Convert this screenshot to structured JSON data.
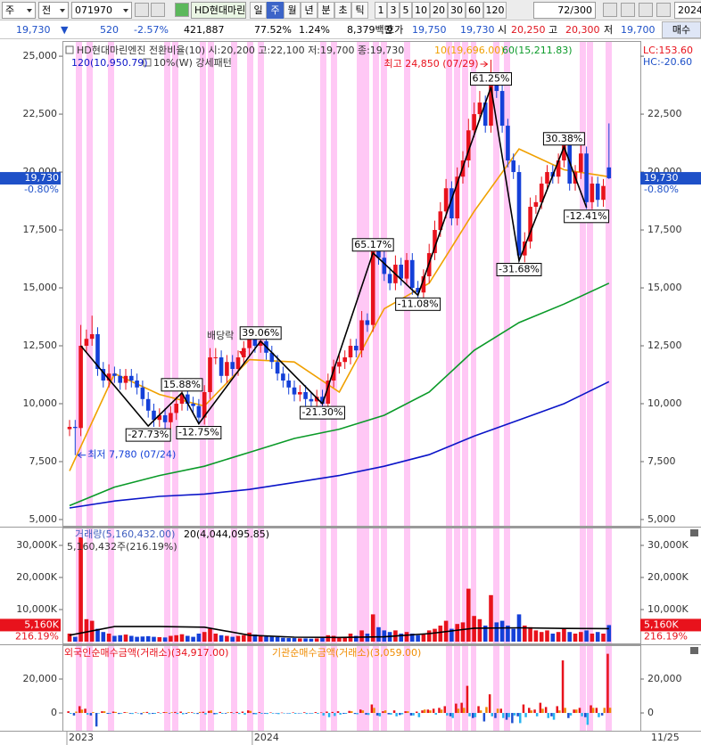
{
  "toolbar": {
    "period": "주",
    "scope": "전",
    "code": "071970",
    "name": "HD현대마린",
    "timeframes": [
      "일",
      "주",
      "월",
      "년",
      "분",
      "초",
      "틱"
    ],
    "selected": "주",
    "intervals": [
      "1",
      "3",
      "5",
      "10",
      "20",
      "30",
      "60",
      "120"
    ],
    "count": "72",
    "count_max": "/300",
    "date": "2024/",
    "buy": "매수"
  },
  "info_bar": {
    "price": "19,730",
    "arrow": "▼",
    "change": "520",
    "change_pct": "-2.57%",
    "volume": "421,887",
    "vol_ratio": "77.52%",
    "turnover": "1.24%",
    "amount": "8,379백만",
    "quote_label": "호가",
    "ask": "19,750",
    "bid": "19,730",
    "open_label": "시",
    "open": "20,250",
    "high_label": "고",
    "high": "20,300",
    "low_label": "저",
    "low": "19,700"
  },
  "chart_data": [
    {
      "type": "candlestick",
      "title": "HD현대마린엔진 전환비율(10) 시:20,200 고:22,100 저:19,700 종:19,730",
      "categories": [
        "2023",
        null,
        null,
        null,
        null,
        null,
        null,
        null,
        null,
        null,
        null,
        null,
        null,
        null,
        null,
        null,
        null,
        null,
        null,
        null,
        null,
        null,
        null,
        null,
        null,
        null,
        null,
        null,
        null,
        null,
        null,
        null,
        null,
        "2024",
        null,
        null,
        null,
        null,
        null,
        null,
        null,
        null,
        null,
        null,
        null,
        null,
        null,
        null,
        null,
        null,
        null,
        null,
        null,
        null,
        null,
        null,
        null,
        null,
        null,
        null,
        null,
        null,
        null,
        null,
        null,
        null,
        null,
        null,
        null,
        null,
        null,
        null,
        null,
        null,
        null,
        null,
        null,
        null,
        null,
        null,
        null,
        null,
        null,
        null,
        null,
        null,
        null,
        null,
        null,
        null,
        null,
        null,
        null,
        null,
        null,
        null,
        null
      ],
      "last_date": "11/25",
      "open": [
        8900,
        9000,
        8950,
        12500,
        12800,
        13000,
        11500,
        11000,
        11300,
        11200,
        10900,
        11200,
        11000,
        10700,
        10200,
        9700,
        9300,
        9500,
        9200,
        9600,
        10000,
        10400,
        10000,
        9900,
        9400,
        10500,
        12000,
        12000,
        11200,
        11800,
        11500,
        12000,
        12400,
        12800,
        12500,
        12700,
        12200,
        11800,
        11300,
        11000,
        10700,
        10400,
        10500,
        10200,
        10100,
        10300,
        10000,
        11000,
        11600,
        11800,
        12000,
        12500,
        12300,
        13600,
        13400,
        16600,
        16300,
        15600,
        15200,
        16000,
        15400,
        16200,
        15000,
        14800,
        15500,
        16500,
        17500,
        18300,
        19300,
        18000,
        19800,
        20500,
        21800,
        22500,
        23000,
        22000,
        23900,
        23500,
        22000,
        20500,
        20000,
        16400,
        17000,
        18500,
        18700,
        19500,
        20000,
        19800,
        20500,
        21200,
        19500,
        20000,
        20800,
        18700,
        19500,
        18800,
        20200
      ],
      "high": [
        9300,
        9300,
        13400,
        13200,
        13800,
        13300,
        11800,
        11700,
        11600,
        11500,
        11500,
        11500,
        11300,
        11000,
        10500,
        10000,
        9800,
        9800,
        9900,
        10300,
        10700,
        10700,
        10300,
        10200,
        10800,
        12400,
        12400,
        12300,
        12100,
        12100,
        12300,
        12700,
        13200,
        13100,
        13000,
        13000,
        12500,
        12100,
        11600,
        11300,
        11000,
        10800,
        10800,
        10500,
        10600,
        10600,
        11300,
        11900,
        12100,
        12300,
        12800,
        12800,
        14000,
        13900,
        17000,
        16900,
        16600,
        15900,
        16400,
        16300,
        16500,
        16500,
        15300,
        15800,
        16900,
        17900,
        18700,
        19700,
        19600,
        20200,
        20900,
        22300,
        23000,
        23500,
        23300,
        24850,
        24200,
        23800,
        22300,
        20800,
        20300,
        17400,
        18900,
        19000,
        19800,
        20300,
        20300,
        20800,
        21600,
        21500,
        20300,
        21200,
        21100,
        19800,
        19800,
        19700,
        22100
      ],
      "low": [
        8600,
        7780,
        8600,
        12200,
        12500,
        11200,
        10700,
        10700,
        10900,
        10600,
        10600,
        10700,
        10400,
        9900,
        9400,
        9000,
        9000,
        8900,
        8900,
        9300,
        9700,
        9700,
        9600,
        9100,
        9100,
        10200,
        11700,
        10900,
        10900,
        11200,
        11200,
        11700,
        12100,
        12200,
        12200,
        11900,
        11500,
        11000,
        10700,
        10400,
        10100,
        10100,
        9900,
        9800,
        9800,
        9700,
        9700,
        10700,
        11300,
        11500,
        11700,
        12000,
        12000,
        13100,
        13100,
        16000,
        15300,
        14900,
        14900,
        15100,
        15100,
        14700,
        14500,
        14500,
        15200,
        16200,
        17200,
        18000,
        17700,
        17700,
        19500,
        20200,
        21500,
        22200,
        21700,
        21700,
        23200,
        21700,
        20200,
        19700,
        16100,
        16100,
        16700,
        18200,
        18400,
        19200,
        19500,
        19500,
        20200,
        19200,
        19200,
        19700,
        18400,
        18400,
        18500,
        18500,
        19700
      ],
      "close": [
        9000,
        8950,
        12500,
        12800,
        13000,
        11500,
        11000,
        11300,
        11200,
        10900,
        11200,
        11000,
        10700,
        10200,
        9700,
        9300,
        9500,
        9200,
        9600,
        10000,
        10400,
        10000,
        9900,
        9400,
        10500,
        12000,
        12000,
        11200,
        11800,
        11500,
        12000,
        12400,
        12800,
        12500,
        12700,
        12200,
        11800,
        11300,
        11000,
        10700,
        10400,
        10500,
        10200,
        10100,
        10300,
        10000,
        11000,
        11600,
        11800,
        12000,
        12500,
        12300,
        13600,
        13400,
        16600,
        16300,
        15600,
        15200,
        16000,
        15400,
        16200,
        15000,
        14800,
        15500,
        16500,
        17500,
        18300,
        19300,
        18000,
        19800,
        20500,
        21800,
        22500,
        23000,
        22000,
        23900,
        23500,
        22000,
        20500,
        20000,
        16400,
        17000,
        18500,
        18700,
        19500,
        20000,
        19800,
        20500,
        21200,
        19500,
        20000,
        20800,
        18700,
        19500,
        18800,
        19400,
        19730
      ],
      "up_color": "#e8121c",
      "down_color": "#1440d8",
      "series": [
        {
          "name": "10(19,696.00)",
          "color": "#f0a000",
          "x": [
            0,
            8,
            16,
            24,
            32,
            40,
            48,
            56,
            64,
            72,
            80,
            88,
            96
          ],
          "values": [
            7100,
            11300,
            10400,
            9900,
            11900,
            11800,
            10500,
            14100,
            15200,
            18300,
            21000,
            20100,
            19800
          ]
        },
        {
          "name": "60(15,211.83)",
          "color": "#0a9a28",
          "x": [
            0,
            8,
            16,
            24,
            32,
            40,
            48,
            56,
            64,
            72,
            80,
            88,
            96
          ],
          "values": [
            5600,
            6400,
            6900,
            7300,
            7900,
            8500,
            8900,
            9500,
            10500,
            12300,
            13500,
            14300,
            15200
          ]
        },
        {
          "name": "120(10,950.79)",
          "color": "#0a14c8",
          "x": [
            0,
            8,
            16,
            24,
            32,
            40,
            48,
            56,
            64,
            72,
            80,
            88,
            96
          ],
          "values": [
            5500,
            5800,
            6000,
            6100,
            6300,
            6600,
            6900,
            7300,
            7800,
            8600,
            9300,
            10000,
            10950
          ]
        }
      ],
      "pattern_label": "10%(W) 강세패턴",
      "zigzag": {
        "x": [
          2,
          14,
          20,
          23,
          34,
          45,
          54,
          62,
          75,
          80,
          88,
          92
        ],
        "values": [
          12500,
          9034,
          10469,
          9134,
          12702,
          9996,
          16510,
          14681,
          23673,
          16174,
          21088,
          18471
        ],
        "labels": [
          null,
          "-27.73%",
          "15.88%",
          "-12.75%",
          "39.06%",
          "-21.30%",
          "65.17%",
          "-11.08%",
          "61.25%",
          "-31.68%",
          "30.38%",
          "-12.41%"
        ]
      },
      "annotations": {
        "high": "최고 24,850 (07/29)",
        "low": "최저 7,780 (07/24)",
        "event": "배당락"
      },
      "lc": "LC:153.60",
      "hc": "HC:-20.60",
      "last_label": "19,730",
      "last_change": "-0.80%",
      "ylim": [
        4730,
        25580
      ],
      "yticks": [
        {
          "value": 5000,
          "label": "5,000"
        },
        {
          "value": 7500,
          "label": "7,500"
        },
        {
          "value": 10000,
          "label": "10,000"
        },
        {
          "value": 12500,
          "label": "12,500"
        },
        {
          "value": 15000,
          "label": "15,000"
        },
        {
          "value": 17500,
          "label": "17,500"
        },
        {
          "value": 20000,
          "label": "20,000"
        },
        {
          "value": 22500,
          "label": "22,500"
        },
        {
          "value": 25000,
          "label": "25,000"
        }
      ],
      "grid": false
    },
    {
      "type": "bar",
      "title": "거래량(5,160,432.00)",
      "summary": "5,160,432주(216.19%)",
      "values": [
        2500,
        1500,
        32500,
        7000,
        6500,
        4000,
        3000,
        2500,
        1800,
        2000,
        2200,
        1800,
        1500,
        1600,
        1700,
        1500,
        1400,
        1300,
        1800,
        2000,
        2300,
        1800,
        1500,
        2500,
        3000,
        4000,
        2500,
        2000,
        1800,
        1500,
        1800,
        2000,
        2800,
        2200,
        2000,
        1600,
        1500,
        1400,
        1200,
        1100,
        1100,
        1000,
        1000,
        900,
        1000,
        1100,
        2000,
        1800,
        1500,
        1500,
        2500,
        1800,
        3500,
        2500,
        8500,
        4500,
        3500,
        3000,
        3500,
        2500,
        3000,
        2500,
        2000,
        2500,
        3500,
        4000,
        5000,
        6500,
        4000,
        5500,
        6000,
        16500,
        8000,
        7000,
        5000,
        14500,
        6000,
        6500,
        5000,
        4000,
        8500,
        5000,
        4500,
        3500,
        3000,
        3500,
        2500,
        3000,
        4000,
        3000,
        2500,
        3000,
        3500,
        2500,
        3000,
        2500,
        5160
      ],
      "up_color": "#e8121c",
      "down_color": "#1440d8",
      "series": [
        {
          "name": "20(4,044,095.85)",
          "color": "#000000",
          "x": [
            0,
            8,
            16,
            24,
            32,
            40,
            48,
            56,
            64,
            72,
            80,
            88,
            96
          ],
          "values": [
            2000,
            4700,
            4700,
            4500,
            2000,
            1400,
            1300,
            1500,
            2500,
            4200,
            4300,
            4100,
            4044
          ]
        }
      ],
      "last_label": "5,160K",
      "last_pct": "216.19%",
      "ylim": [
        0,
        35000
      ],
      "yticks": [
        {
          "value": 10000,
          "label": "10,000K"
        },
        {
          "value": 20000,
          "label": "20,000K"
        },
        {
          "value": 30000,
          "label": "30,000K"
        }
      ]
    },
    {
      "type": "bar",
      "series": [
        {
          "name": "외국인순매수금액(거래소)(34,917.00)",
          "color": "#e8121c",
          "negative_color": "#1e50d0",
          "values": [
            1000,
            -1500,
            4000,
            2500,
            -1500,
            -8000,
            1000,
            -500,
            800,
            -600,
            500,
            -400,
            300,
            -800,
            600,
            -500,
            400,
            500,
            -300,
            600,
            800,
            -500,
            400,
            -600,
            700,
            1200,
            -800,
            600,
            -400,
            500,
            600,
            800,
            1500,
            -700,
            500,
            -400,
            300,
            -300,
            200,
            -200,
            300,
            -200,
            400,
            -300,
            500,
            300,
            800,
            600,
            1000,
            -500,
            1200,
            -600,
            2000,
            -1000,
            5000,
            -1500,
            1000,
            -800,
            1500,
            -1200,
            1000,
            -1500,
            800,
            1500,
            2000,
            2500,
            3000,
            4000,
            -2000,
            5500,
            6000,
            16000,
            -3000,
            4000,
            -5000,
            11000,
            -3000,
            2500,
            -4000,
            -6000,
            -2000,
            5000,
            3000,
            2000,
            6000,
            3500,
            -2000,
            4000,
            31000,
            -3000,
            2000,
            3000,
            -2500,
            4500,
            3000,
            -1500,
            34917
          ]
        },
        {
          "name": "기관순매수금액(거래소)(3,059.00)",
          "color": "#f08c00",
          "negative_color": "#28b4f0",
          "values": [
            -500,
            800,
            2000,
            -1000,
            500,
            -300,
            1000,
            -500,
            600,
            -400,
            300,
            -600,
            -300,
            400,
            -700,
            -500,
            -300,
            500,
            400,
            -600,
            -800,
            500,
            -400,
            600,
            -900,
            1500,
            -700,
            -500,
            400,
            -300,
            -600,
            -1000,
            1200,
            -800,
            -500,
            -600,
            -400,
            -700,
            -300,
            -400,
            -500,
            -300,
            -600,
            -400,
            -500,
            -1500,
            -2500,
            -1800,
            -1000,
            -500,
            1000,
            -800,
            1500,
            -1200,
            3000,
            -2000,
            1500,
            -1000,
            -2000,
            -800,
            1000,
            -1500,
            -2500,
            2000,
            1500,
            -1000,
            2000,
            -1500,
            -3000,
            2500,
            3000,
            -2000,
            -2500,
            1500,
            3500,
            -2000,
            2500,
            -3000,
            -2500,
            -1500,
            -6000,
            -2500,
            1500,
            -2000,
            2500,
            -3000,
            -4000,
            1500,
            3000,
            -1500,
            2000,
            -2000,
            -7000,
            3000,
            -2500,
            3000,
            3059
          ]
        }
      ],
      "ylim": [
        -10500,
        38400
      ],
      "yticks": [
        0,
        {
          "value": 20000,
          "label": "20,000"
        }
      ]
    }
  ]
}
